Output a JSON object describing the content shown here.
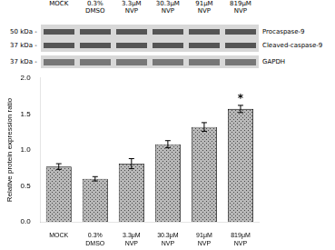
{
  "chart_data": {
    "type": "bar",
    "categories": [
      "MOCK",
      "0.3%\nDMSO",
      "3.3μM\nNVP",
      "30.3μM\nNVP",
      "91μM\nNVP",
      "819μM\nNVP"
    ],
    "values": [
      0.77,
      0.6,
      0.81,
      1.08,
      1.32,
      1.57
    ],
    "errors": [
      0.04,
      0.03,
      0.07,
      0.05,
      0.06,
      0.05
    ],
    "color": "#b8b8b8",
    "ylabel": "Relative protein expression ratio",
    "ylim": [
      0,
      2.0
    ],
    "yticks": [
      {
        "value": 0,
        "label": "0.0"
      },
      0.5,
      {
        "value": 1,
        "label": "1.0"
      },
      1.5,
      {
        "value": 2,
        "label": "2.0"
      }
    ],
    "grid": false,
    "annotations": [
      {
        "text": "*",
        "category": "819μM\nNVP"
      },
      {
        "text": "Procaspase-9",
        "kda": "50 kDa -"
      },
      {
        "text": "Cleaved-caspase-9",
        "kda": "37 kDa -"
      },
      {
        "text": "GAPDH",
        "kda": "37 kDa -"
      }
    ]
  }
}
